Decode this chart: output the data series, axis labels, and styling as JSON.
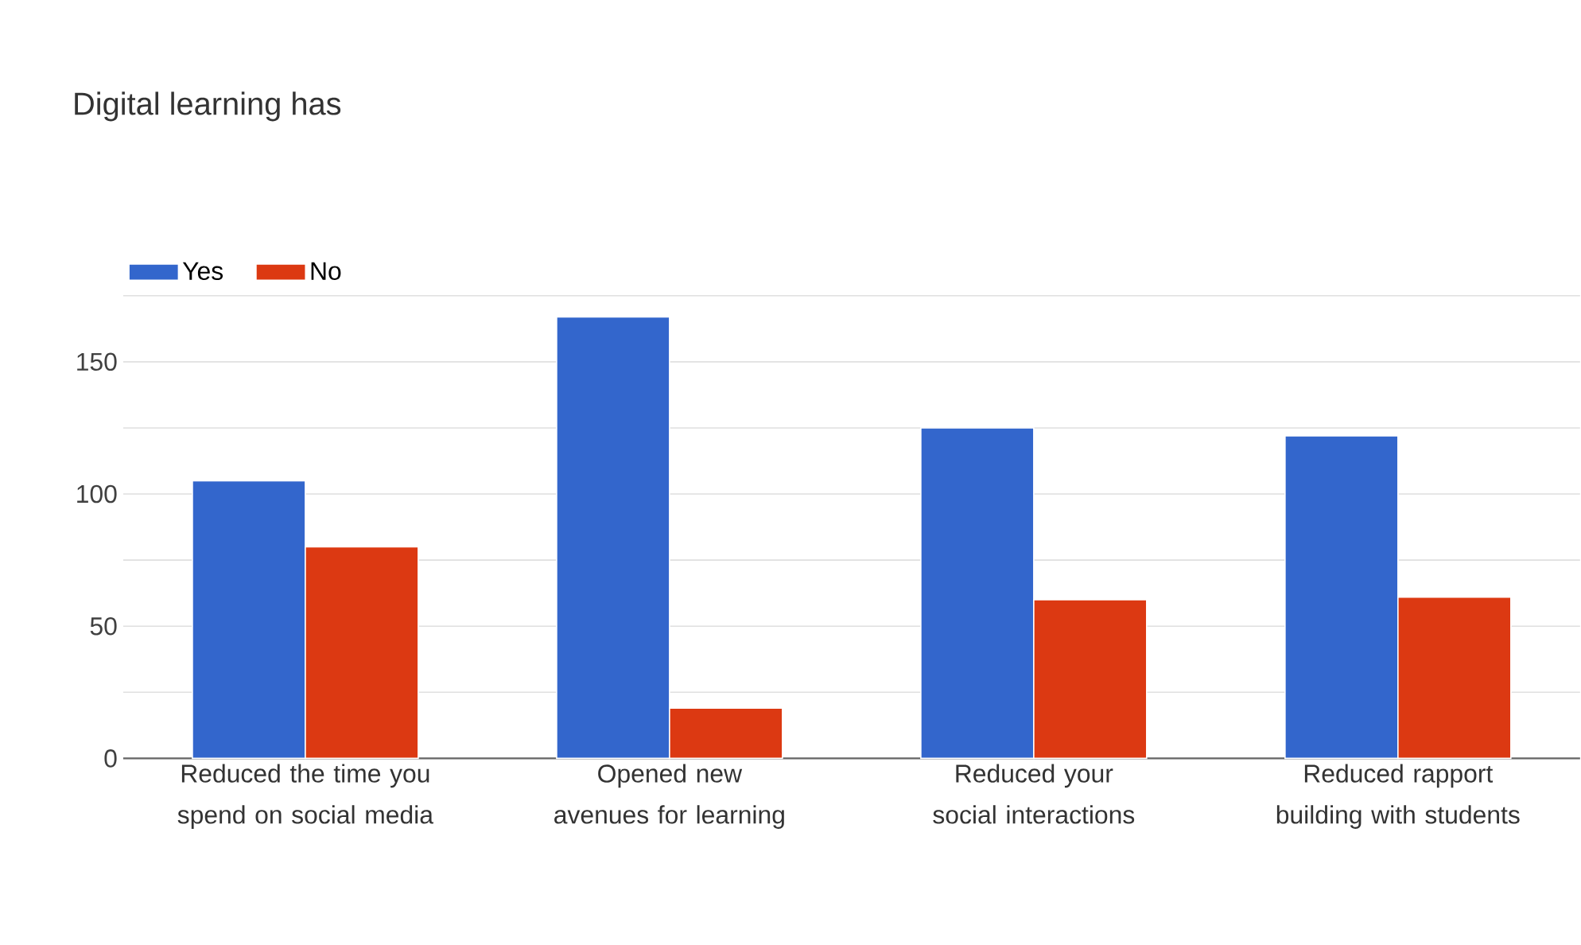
{
  "chart_data": {
    "type": "bar",
    "title": "Digital learning has",
    "categories": [
      "Reduced the time you spend on social media",
      "Opened new avenues for learning",
      "Reduced your social interactions",
      "Reduced rapport building with students"
    ],
    "series": [
      {
        "name": "Yes",
        "color": "#3366cc",
        "values": [
          105,
          167,
          125,
          122
        ]
      },
      {
        "name": "No",
        "color": "#dc3912",
        "values": [
          80,
          19,
          60,
          61
        ]
      }
    ],
    "ylim": [
      0,
      175
    ],
    "yticks": [
      0,
      {
        "value": 25,
        "label": null
      },
      50,
      {
        "value": 75,
        "label": null
      },
      100,
      {
        "value": 125,
        "label": null
      },
      150,
      {
        "value": 175,
        "label": null
      }
    ],
    "grid": "y",
    "legend": "top left"
  }
}
